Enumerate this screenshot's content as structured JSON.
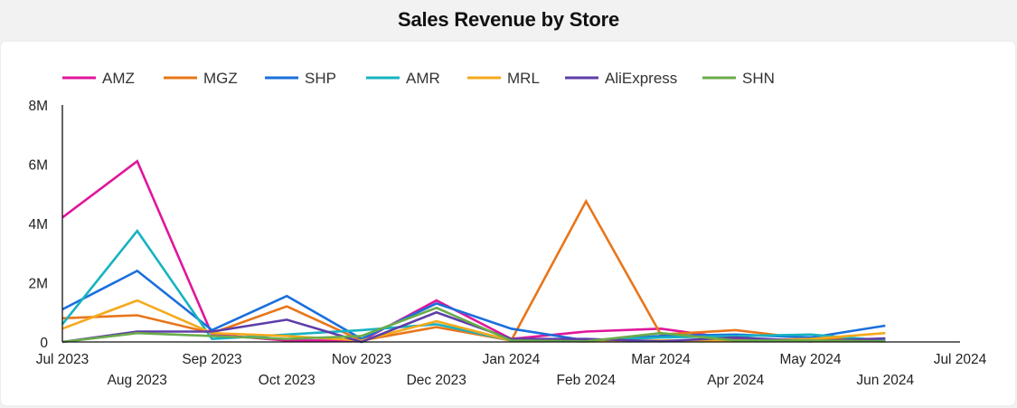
{
  "header": {
    "title": "Sales Revenue by Store"
  },
  "chart_data": {
    "type": "line",
    "title": "Sales Revenue by Store",
    "xlabel": "",
    "ylabel": "",
    "ylim": [
      0,
      8000000
    ],
    "y_ticks": [
      {
        "value": 0,
        "label": "0"
      },
      {
        "value": 2000000,
        "label": "2M"
      },
      {
        "value": 4000000,
        "label": "4M"
      },
      {
        "value": 6000000,
        "label": "6M"
      },
      {
        "value": 8000000,
        "label": "8M"
      }
    ],
    "x_ticks": [
      "Jul 2023",
      "Aug 2023",
      "Sep 2023",
      "Oct 2023",
      "Nov 2023",
      "Dec 2023",
      "Jan 2024",
      "Feb 2024",
      "Mar 2024",
      "Apr 2024",
      "May 2024",
      "Jun 2024",
      "Jul 2024"
    ],
    "x": [
      "Jul 2023",
      "Aug 2023",
      "Sep 2023",
      "Oct 2023",
      "Nov 2023",
      "Dec 2023",
      "Jan 2024",
      "Feb 2024",
      "Mar 2024",
      "Apr 2024",
      "May 2024",
      "Jun 2024"
    ],
    "grid": false,
    "legend_position": "top-left",
    "series": [
      {
        "name": "AMZ",
        "color": "#e0169b",
        "values": [
          4200000,
          6100000,
          250000,
          50000,
          50000,
          1400000,
          100000,
          350000,
          450000,
          100000,
          50000,
          50000
        ]
      },
      {
        "name": "MGZ",
        "color": "#e8761a",
        "values": [
          800000,
          900000,
          300000,
          1200000,
          50000,
          500000,
          50000,
          4750000,
          250000,
          400000,
          100000,
          100000
        ]
      },
      {
        "name": "SHP",
        "color": "#1a6fdb",
        "values": [
          1100000,
          2400000,
          400000,
          1550000,
          100000,
          1300000,
          450000,
          50000,
          200000,
          250000,
          150000,
          550000
        ]
      },
      {
        "name": "AMR",
        "color": "#17b3c1",
        "values": [
          600000,
          3750000,
          100000,
          250000,
          400000,
          600000,
          50000,
          50000,
          150000,
          200000,
          250000,
          50000
        ]
      },
      {
        "name": "MRL",
        "color": "#f5a91c",
        "values": [
          450000,
          1400000,
          300000,
          200000,
          50000,
          700000,
          50000,
          20000,
          50000,
          50000,
          100000,
          300000
        ]
      },
      {
        "name": "AliExpress",
        "color": "#5e3ea8",
        "values": [
          0,
          350000,
          350000,
          750000,
          0,
          1000000,
          100000,
          100000,
          20000,
          150000,
          20000,
          120000
        ]
      },
      {
        "name": "SHN",
        "color": "#6aab4a",
        "values": [
          0,
          300000,
          200000,
          100000,
          200000,
          1150000,
          50000,
          20000,
          300000,
          50000,
          50000,
          20000
        ]
      }
    ]
  }
}
